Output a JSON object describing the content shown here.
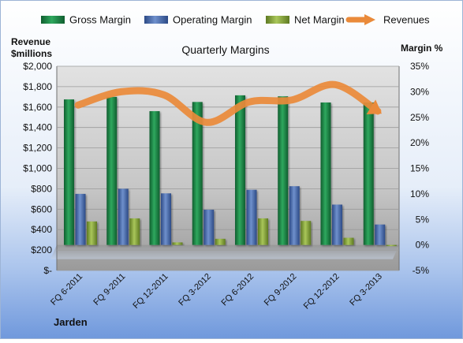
{
  "chart_data": {
    "type": "bar",
    "title": "Quarterly Margins",
    "categories": [
      "FQ 6-2011",
      "FQ 9-2011",
      "FQ 12-2011",
      "FQ 3-2012",
      "FQ 6-2012",
      "FQ 9-2012",
      "FQ 12-2012",
      "FQ 3-2013"
    ],
    "left_axis": {
      "label_line1": "Revenue",
      "label_line2": "$millions",
      "ylim": [
        0,
        2000
      ],
      "ticks": [
        0,
        200,
        400,
        600,
        800,
        1000,
        1200,
        1400,
        1600,
        1800,
        2000
      ],
      "tick_labels": [
        "$-",
        "$200",
        "$400",
        "$600",
        "$800",
        "$1,000",
        "$1,200",
        "$1,400",
        "$1,600",
        "$1,800",
        "$2,000"
      ]
    },
    "right_axis": {
      "label": "Margin %",
      "ylim": [
        -5,
        35
      ],
      "ticks": [
        -5,
        0,
        5,
        10,
        15,
        20,
        25,
        30,
        35
      ],
      "tick_labels": [
        "-5%",
        "0%",
        "5%",
        "10%",
        "15%",
        "20%",
        "25%",
        "30%",
        "35%"
      ]
    },
    "legend_position": "top",
    "series": [
      {
        "name": "Gross Margin",
        "axis": "right",
        "kind": "bar",
        "color": "#1e8a4a",
        "values": [
          28.5,
          29.0,
          26.2,
          28.0,
          29.3,
          29.1,
          27.9,
          27.9
        ]
      },
      {
        "name": "Operating Margin",
        "axis": "right",
        "kind": "bar",
        "color": "#4a6eb0",
        "values": [
          10.0,
          11.0,
          10.1,
          6.9,
          10.8,
          11.5,
          7.9,
          4.0
        ]
      },
      {
        "name": "Net Margin",
        "axis": "right",
        "kind": "bar",
        "color": "#8aa842",
        "values": [
          4.6,
          5.2,
          0.5,
          1.2,
          5.2,
          4.7,
          1.4,
          -0.1
        ]
      },
      {
        "name": "Revenues",
        "axis": "left",
        "kind": "line",
        "color": "#ea8a3a",
        "values": [
          1620,
          1750,
          1720,
          1450,
          1650,
          1670,
          1820,
          1560
        ]
      }
    ],
    "footer_label": "Jarden"
  }
}
